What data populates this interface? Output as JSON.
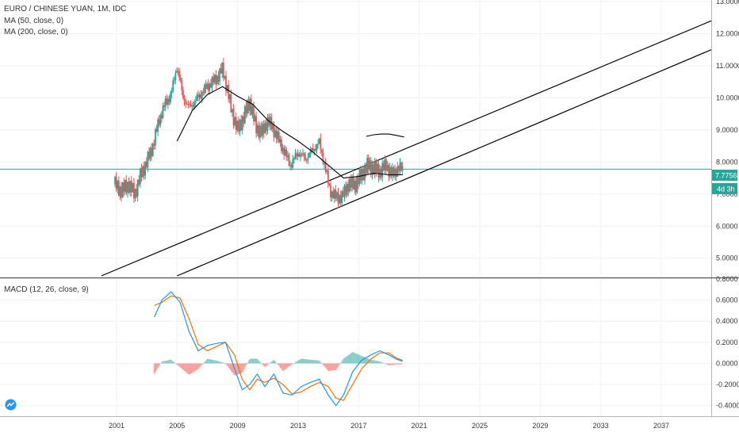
{
  "legend": {
    "symbol": "EURO / CHINESE YUAN, 1M, IDC",
    "ma50": "MA (50, close, 0)",
    "ma200": "MA (200, close, 0)",
    "macd": "MACD (12, 26, close, 9)"
  },
  "price_tag": {
    "value": "7.7756",
    "countdown": "4d 3h"
  },
  "colors": {
    "up": "#26a69a",
    "down": "#ef5350",
    "ma": "#000000",
    "macd_line": "#2196f3",
    "signal_line": "#ff6d00",
    "hist_pos": "#26a69a",
    "hist_neg": "#ef5350",
    "price_line": "#26a69a",
    "trendline": "#000000"
  },
  "logo": "tradingview-logo-icon",
  "chart_data": [
    {
      "type": "candlestick",
      "title": "EURO / CHINESE YUAN, 1M, IDC",
      "x_ticks": [
        "2001",
        "2005",
        "2009",
        "2013",
        "2017",
        "2021",
        "2025",
        "2029",
        "2033",
        "2037"
      ],
      "y_ticks": [
        "5.0000",
        "6.0000",
        "7.0000",
        "8.0000",
        "9.0000",
        "10.0000",
        "11.0000",
        "12.0000",
        "13.0000"
      ],
      "ylim": [
        4.45,
        13.05
      ],
      "xlim": [
        1993.3,
        2040.3
      ],
      "last_price": 7.7756,
      "close_series": [
        [
          2000.9,
          7.3
        ],
        [
          2001.3,
          7.1
        ],
        [
          2001.8,
          7.3
        ],
        [
          2002.2,
          7.0
        ],
        [
          2002.6,
          7.6
        ],
        [
          2003.0,
          8.0
        ],
        [
          2003.4,
          8.5
        ],
        [
          2003.8,
          9.3
        ],
        [
          2004.2,
          9.8
        ],
        [
          2004.6,
          10.1
        ],
        [
          2005.0,
          11.0
        ],
        [
          2005.4,
          10.0
        ],
        [
          2005.8,
          9.7
        ],
        [
          2006.2,
          9.9
        ],
        [
          2006.7,
          10.2
        ],
        [
          2007.1,
          10.4
        ],
        [
          2007.6,
          10.6
        ],
        [
          2008.0,
          10.9
        ],
        [
          2008.3,
          10.3
        ],
        [
          2008.6,
          9.6
        ],
        [
          2009.0,
          9.0
        ],
        [
          2009.4,
          9.4
        ],
        [
          2009.8,
          9.9
        ],
        [
          2010.2,
          9.1
        ],
        [
          2010.6,
          8.9
        ],
        [
          2011.0,
          9.3
        ],
        [
          2011.5,
          8.9
        ],
        [
          2012.0,
          8.4
        ],
        [
          2012.5,
          7.9
        ],
        [
          2013.0,
          8.3
        ],
        [
          2013.5,
          8.1
        ],
        [
          2014.0,
          8.4
        ],
        [
          2014.4,
          8.6
        ],
        [
          2014.8,
          7.8
        ],
        [
          2015.1,
          7.1
        ],
        [
          2015.5,
          6.9
        ],
        [
          2015.9,
          6.9
        ],
        [
          2016.3,
          7.3
        ],
        [
          2016.8,
          7.3
        ],
        [
          2017.2,
          7.6
        ],
        [
          2017.6,
          7.9
        ],
        [
          2018.0,
          7.8
        ],
        [
          2018.4,
          7.7
        ],
        [
          2018.8,
          7.9
        ],
        [
          2019.2,
          7.6
        ],
        [
          2019.6,
          7.8
        ],
        [
          2019.9,
          7.78
        ]
      ],
      "ma50": [
        [
          2005.0,
          8.65
        ],
        [
          2006.0,
          9.6
        ],
        [
          2007.0,
          10.1
        ],
        [
          2008.0,
          10.35
        ],
        [
          2009.0,
          10.05
        ],
        [
          2010.0,
          9.8
        ],
        [
          2011.0,
          9.3
        ],
        [
          2012.0,
          8.95
        ],
        [
          2013.0,
          8.65
        ],
        [
          2014.0,
          8.3
        ],
        [
          2015.0,
          7.9
        ],
        [
          2016.0,
          7.5
        ],
        [
          2017.0,
          7.55
        ],
        [
          2018.0,
          7.65
        ],
        [
          2019.0,
          7.6
        ],
        [
          2019.9,
          7.6
        ]
      ],
      "ma200": [
        [
          2017.5,
          8.8
        ],
        [
          2018.0,
          8.85
        ],
        [
          2018.5,
          8.87
        ],
        [
          2019.0,
          8.87
        ],
        [
          2019.5,
          8.83
        ],
        [
          2020.0,
          8.78
        ]
      ],
      "trendlines": [
        {
          "x0": 2000.0,
          "y0": 4.45,
          "x1": 2040.3,
          "y1": 12.4
        },
        {
          "x0": 2005.0,
          "y0": 4.45,
          "x1": 2040.3,
          "y1": 11.5
        }
      ]
    },
    {
      "type": "line",
      "title": "MACD (12, 26, close, 9)",
      "y_ticks": [
        "-0.4000",
        "-0.2000",
        "0.0000",
        "0.2000",
        "0.4000",
        "0.6000",
        "0.8000"
      ],
      "ylim": [
        -0.5,
        0.8
      ],
      "series": [
        {
          "name": "MACD",
          "values": [
            [
              2003.5,
              0.44
            ],
            [
              2004.0,
              0.6
            ],
            [
              2004.6,
              0.68
            ],
            [
              2005.2,
              0.58
            ],
            [
              2005.8,
              0.3
            ],
            [
              2006.4,
              0.12
            ],
            [
              2007.0,
              0.17
            ],
            [
              2007.6,
              0.19
            ],
            [
              2008.2,
              0.2
            ],
            [
              2008.8,
              -0.05
            ],
            [
              2009.3,
              -0.25
            ],
            [
              2009.8,
              -0.2
            ],
            [
              2010.3,
              -0.1
            ],
            [
              2010.8,
              -0.22
            ],
            [
              2011.4,
              -0.1
            ],
            [
              2012.0,
              -0.28
            ],
            [
              2012.6,
              -0.3
            ],
            [
              2013.2,
              -0.22
            ],
            [
              2013.8,
              -0.18
            ],
            [
              2014.4,
              -0.15
            ],
            [
              2015.0,
              -0.3
            ],
            [
              2015.5,
              -0.4
            ],
            [
              2016.0,
              -0.3
            ],
            [
              2016.6,
              -0.08
            ],
            [
              2017.2,
              0.03
            ],
            [
              2017.8,
              0.08
            ],
            [
              2018.4,
              0.12
            ],
            [
              2019.0,
              0.08
            ],
            [
              2019.5,
              0.04
            ],
            [
              2019.9,
              0.02
            ]
          ]
        },
        {
          "name": "Signal",
          "values": [
            [
              2003.5,
              0.55
            ],
            [
              2004.0,
              0.58
            ],
            [
              2004.6,
              0.64
            ],
            [
              2005.2,
              0.62
            ],
            [
              2005.8,
              0.42
            ],
            [
              2006.4,
              0.18
            ],
            [
              2007.0,
              0.12
            ],
            [
              2007.6,
              0.16
            ],
            [
              2008.2,
              0.2
            ],
            [
              2008.8,
              0.08
            ],
            [
              2009.3,
              -0.15
            ],
            [
              2009.8,
              -0.25
            ],
            [
              2010.3,
              -0.15
            ],
            [
              2010.8,
              -0.18
            ],
            [
              2011.4,
              -0.14
            ],
            [
              2012.0,
              -0.2
            ],
            [
              2012.6,
              -0.29
            ],
            [
              2013.2,
              -0.27
            ],
            [
              2013.8,
              -0.22
            ],
            [
              2014.4,
              -0.18
            ],
            [
              2015.0,
              -0.22
            ],
            [
              2015.5,
              -0.33
            ],
            [
              2016.0,
              -0.35
            ],
            [
              2016.6,
              -0.2
            ],
            [
              2017.2,
              -0.05
            ],
            [
              2017.8,
              0.04
            ],
            [
              2018.4,
              0.1
            ],
            [
              2019.0,
              0.1
            ],
            [
              2019.5,
              0.05
            ],
            [
              2019.9,
              0.03
            ]
          ]
        }
      ]
    }
  ]
}
